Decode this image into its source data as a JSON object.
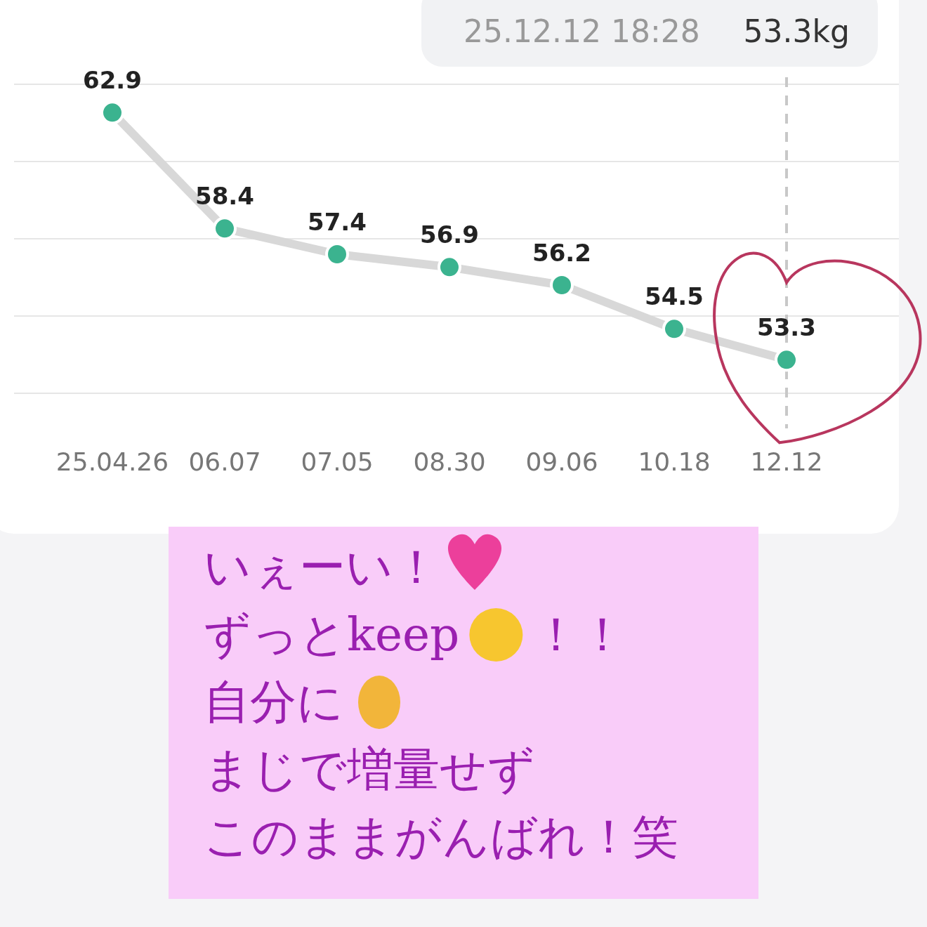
{
  "chart_data": {
    "type": "line",
    "categories": [
      "25.04.26",
      "06.07",
      "07.05",
      "08.30",
      "09.06",
      "10.18",
      "12.12"
    ],
    "series": [
      {
        "color": "#3bb38f",
        "values": [
          62.9,
          58.4,
          57.4,
          56.9,
          56.2,
          54.5,
          53.3
        ]
      }
    ],
    "data_labels": true,
    "marker": "circle",
    "line_style": "solid",
    "grid": "y",
    "tick_labels": "x",
    "ylim": [
      52,
      64
    ],
    "yticks": [
      {
        "value": 52,
        "label": null
      },
      {
        "value": 55,
        "label": null
      },
      {
        "value": 58,
        "label": null
      },
      {
        "value": 61,
        "label": null
      },
      {
        "value": 64,
        "label": null
      }
    ],
    "ref_lines": [
      {
        "axis": "x",
        "value": "12.12",
        "line_style": "dashed",
        "color": "#c8c8c8"
      }
    ],
    "annotations": [
      "25.12.12 18:28",
      "53.3kg",
      "いぇーい！",
      "ずっとkeep",
      "！！",
      "自分に",
      "まじで増量せず",
      "このままがんばれ！笑"
    ]
  }
}
